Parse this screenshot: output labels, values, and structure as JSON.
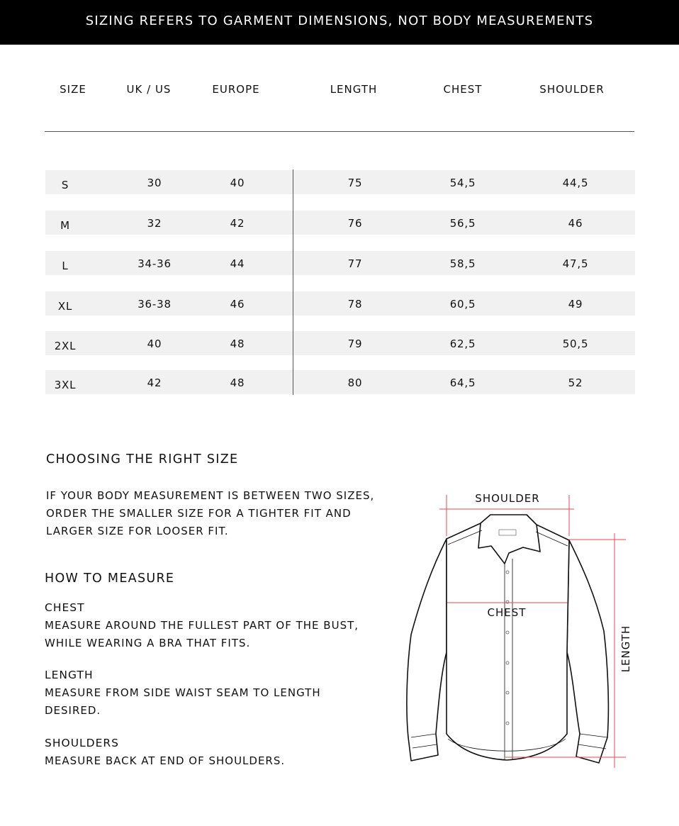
{
  "banner": "SIZING REFERS TO GARMENT DIMENSIONS, NOT BODY MEASUREMENTS",
  "table": {
    "headers": [
      "SIZE",
      "UK / US",
      "EUROPE",
      "LENGTH",
      "CHEST",
      "SHOULDER"
    ],
    "rows": [
      [
        "S",
        "30",
        "40",
        "75",
        "54,5",
        "44,5"
      ],
      [
        "M",
        "32",
        "42",
        "76",
        "56,5",
        "46"
      ],
      [
        "L",
        "34-36",
        "44",
        "77",
        "58,5",
        "47,5"
      ],
      [
        "XL",
        "36-38",
        "46",
        "78",
        "60,5",
        "49"
      ],
      [
        "2XL",
        "40",
        "48",
        "79",
        "62,5",
        "50,5"
      ],
      [
        "3XL",
        "42",
        "48",
        "80",
        "64,5",
        "52"
      ]
    ]
  },
  "choosing": {
    "title": "CHOOSING THE RIGHT SIZE",
    "lines": [
      "IF YOUR BODY MEASUREMENT IS BETWEEN TWO SIZES,",
      "ORDER THE SMALLER SIZE FOR A TIGHTER FIT AND",
      "LARGER SIZE FOR LOOSER FIT."
    ]
  },
  "how_to": {
    "title": "HOW TO MEASURE",
    "sections": [
      {
        "title": "CHEST",
        "lines": [
          "MEASURE AROUND THE FULLEST PART OF THE BUST,",
          "WHILE WEARING A BRA THAT FITS."
        ]
      },
      {
        "title": "LENGTH",
        "lines": [
          "MEASURE FROM SIDE WAIST SEAM TO LENGTH",
          "DESIRED."
        ]
      },
      {
        "title": "SHOULDERS",
        "lines": [
          "MEASURE BACK AT END OF SHOULDERS."
        ]
      }
    ]
  },
  "diagram": {
    "shoulder_label": "SHOULDER",
    "chest_label": "CHEST",
    "length_label": "LENGTH",
    "measure_line_color": "#e8474c"
  }
}
